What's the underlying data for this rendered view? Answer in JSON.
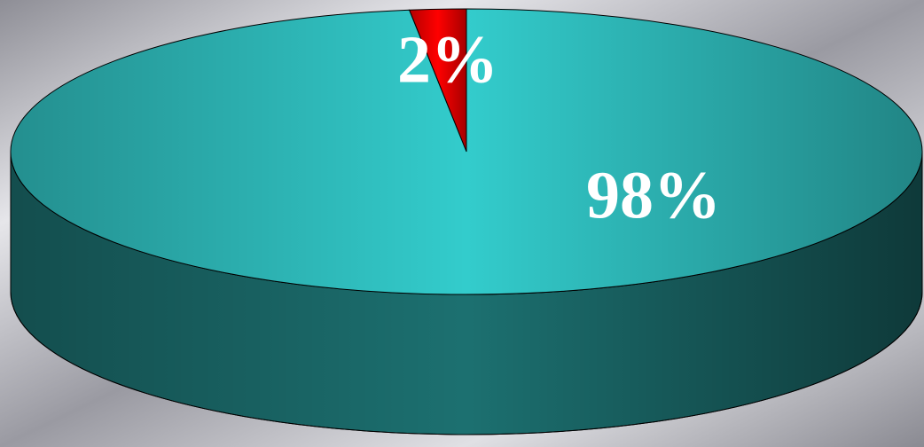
{
  "chart_data": {
    "type": "pie3d",
    "values": [
      2,
      98
    ],
    "value_labels": [
      "2%",
      "98%"
    ],
    "colors": [
      "#ff0000",
      "#33cccc"
    ]
  }
}
